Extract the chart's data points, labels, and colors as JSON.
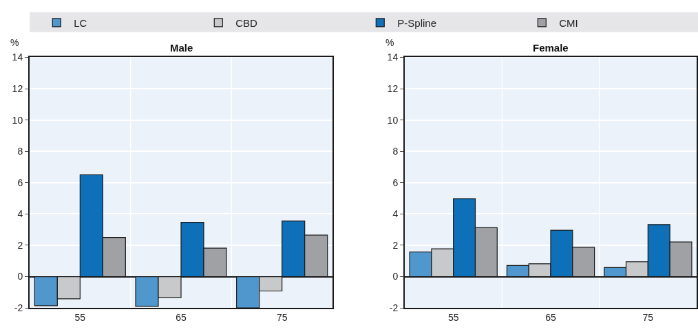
{
  "chart_data": [
    {
      "type": "bar",
      "title": "Male",
      "ylabel": "%",
      "categories": [
        "55",
        "65",
        "75"
      ],
      "ylim": [
        -2,
        14
      ],
      "yticks": [
        -2,
        0,
        2,
        4,
        6,
        8,
        10,
        12,
        14
      ],
      "grid": true,
      "legend": "top",
      "series": [
        {
          "name": "LC",
          "color": "#4f97cd",
          "values": [
            -1.86,
            -1.9,
            -2.0
          ]
        },
        {
          "name": "CBD",
          "color": "#c8c9cb",
          "values": [
            -1.42,
            -1.34,
            -0.92
          ]
        },
        {
          "name": "P-Spline",
          "color": "#0e70b8",
          "values": [
            6.5,
            3.46,
            3.55
          ]
        },
        {
          "name": "CMI",
          "color": "#a0a1a5",
          "values": [
            2.5,
            1.82,
            2.65
          ]
        }
      ]
    },
    {
      "type": "bar",
      "title": "Female",
      "ylabel": "%",
      "categories": [
        "55",
        "65",
        "75"
      ],
      "ylim": [
        -2,
        14
      ],
      "yticks": [
        -2,
        0,
        2,
        4,
        6,
        8,
        10,
        12,
        14
      ],
      "grid": true,
      "series": [
        {
          "color": "#4f97cd",
          "values": [
            1.57,
            0.71,
            0.58
          ]
        },
        {
          "color": "#c8c9cb",
          "values": [
            1.77,
            0.82,
            0.95
          ]
        },
        {
          "color": "#0e70b8",
          "values": [
            4.98,
            2.96,
            3.32
          ]
        },
        {
          "color": "#a0a1a5",
          "values": [
            3.12,
            1.87,
            2.21
          ]
        }
      ]
    }
  ]
}
